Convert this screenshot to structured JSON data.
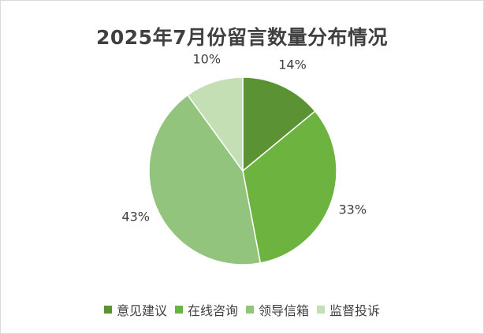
{
  "chart_data": {
    "type": "pie",
    "title": "2025年7月份留言数量分布情况",
    "categories": [
      "意见建议",
      "在线咨询",
      "领导信箱",
      "监督投诉"
    ],
    "values": [
      14,
      33,
      43,
      10
    ],
    "labels": [
      "14%",
      "33%",
      "43%",
      "10%"
    ],
    "colors": [
      "#5b9233",
      "#6db33f",
      "#93c47d",
      "#c3dfb3"
    ],
    "legend_position": "bottom"
  }
}
